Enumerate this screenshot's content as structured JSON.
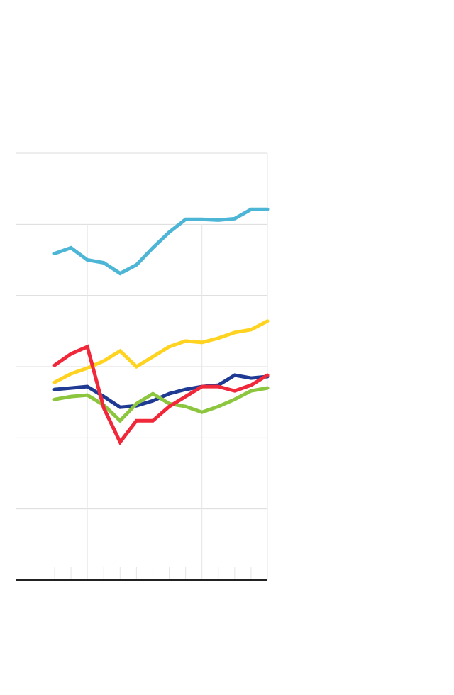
{
  "chart_data": {
    "type": "line",
    "title": "",
    "xlabel": "",
    "ylabel": "",
    "x": [
      0,
      1,
      2,
      3,
      4,
      5,
      6,
      7,
      8,
      9,
      10,
      11,
      12,
      13
    ],
    "xlim": [
      -2.4,
      13
    ],
    "ylim": [
      0,
      6
    ],
    "grid": "horizontal",
    "major_x_ticks": [
      2,
      9,
      13
    ],
    "series": [
      {
        "color": "#4DB6D6",
        "values": [
          4.59,
          4.67,
          4.5,
          4.46,
          4.31,
          4.43,
          4.67,
          4.89,
          5.07,
          5.07,
          5.06,
          5.08,
          5.21,
          5.21
        ]
      },
      {
        "color": "#FFD320",
        "values": [
          2.78,
          2.9,
          2.98,
          3.08,
          3.22,
          3.0,
          3.14,
          3.28,
          3.36,
          3.34,
          3.4,
          3.48,
          3.52,
          3.64
        ]
      },
      {
        "color": "#1F3A93",
        "values": [
          2.68,
          2.7,
          2.72,
          2.58,
          2.43,
          2.45,
          2.52,
          2.62,
          2.68,
          2.72,
          2.74,
          2.88,
          2.84,
          2.86
        ]
      },
      {
        "color": "#8CC63F",
        "values": [
          2.54,
          2.58,
          2.6,
          2.46,
          2.24,
          2.48,
          2.62,
          2.48,
          2.44,
          2.36,
          2.44,
          2.54,
          2.66,
          2.7
        ]
      },
      {
        "color": "#F0283A",
        "values": [
          3.02,
          3.18,
          3.28,
          2.42,
          1.94,
          2.24,
          2.24,
          2.44,
          2.58,
          2.72,
          2.72,
          2.66,
          2.74,
          2.88
        ]
      }
    ]
  }
}
